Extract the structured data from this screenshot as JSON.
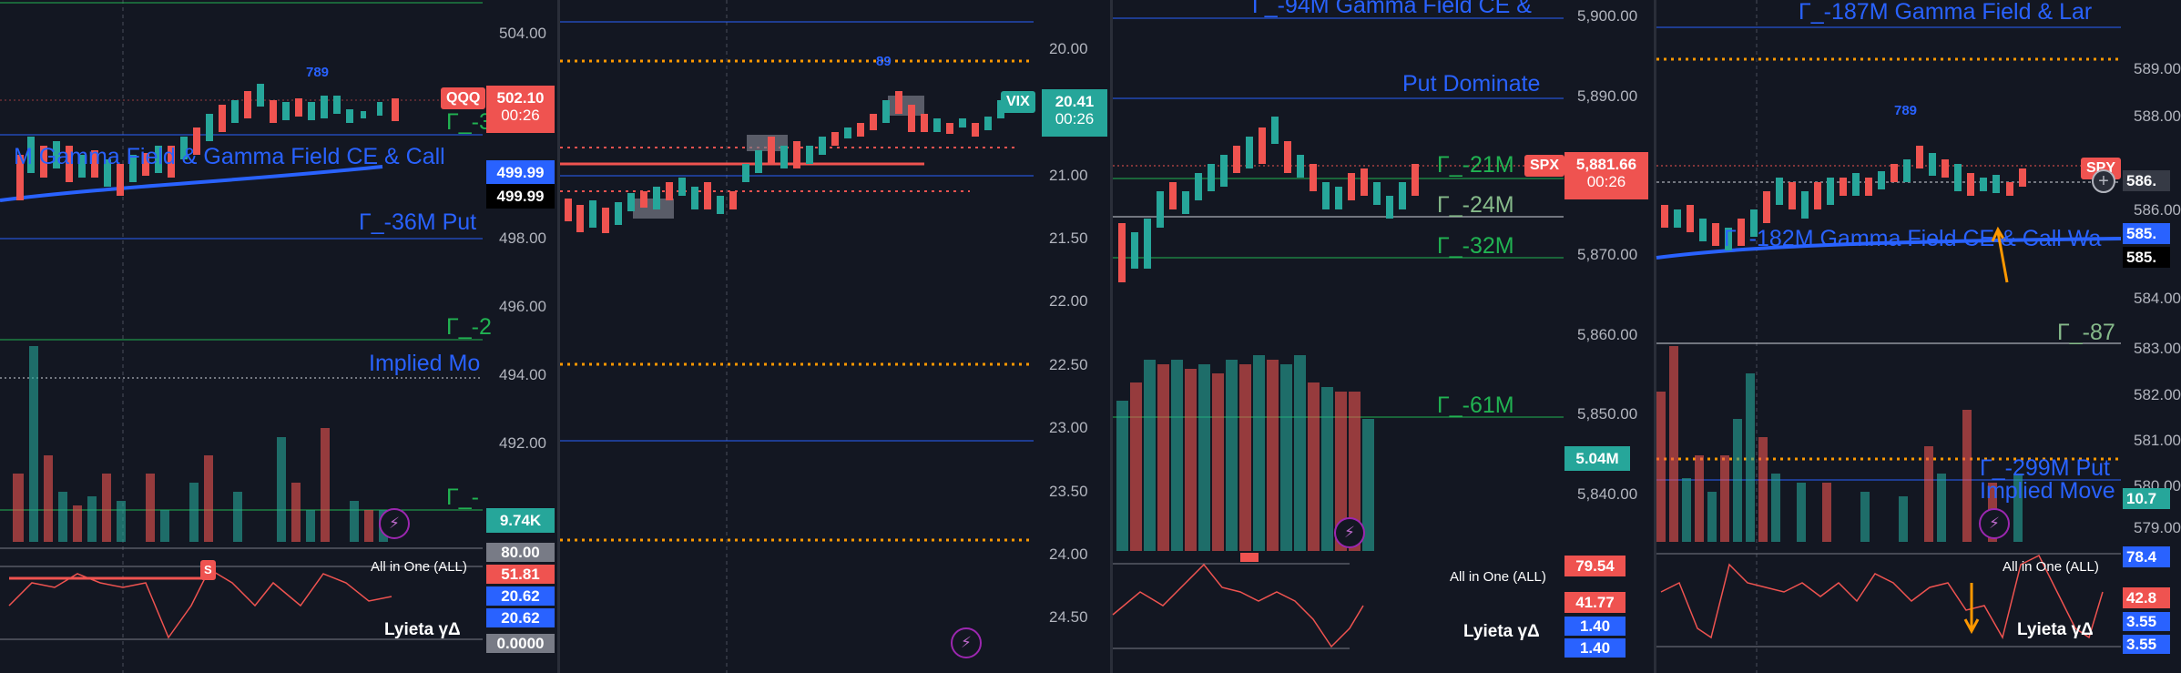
{
  "colors": {
    "bg": "#131722",
    "up": "#26a69a",
    "down": "#ef5350",
    "blue": "#2962ff",
    "green": "#21b352",
    "orange": "#ff9800"
  },
  "panel1": {
    "symbol": "QQQ",
    "price": "502.10",
    "countdown": "00:26",
    "axis": [
      "504.00",
      "498.00",
      "496.00",
      "494.00",
      "492.00"
    ],
    "ma_tag_1": "499.99",
    "ma_tag_2": "499.99",
    "volume": "9.74K",
    "indicator": "All in One (ALL)",
    "ind_val_1": "80.00",
    "ind_val_2": "51.81",
    "ind_val_3": "20.62",
    "ind_val_4": "20.62",
    "ind_val_5": "0.0000",
    "lyieta": "Lyieta γΔ",
    "labels": {
      "gamma_field": "M Gamma Field & Gamma Field CE & Call",
      "put": "Γ_-36M  Put",
      "implied": "Implied Mo",
      "g1": "Γ_-3",
      "g2": "Γ_-2",
      "g3": "Γ_-"
    },
    "seq": "789",
    "sell_marker": "S"
  },
  "panel2": {
    "symbol": "VIX",
    "price": "20.41",
    "countdown": "00:26",
    "axis": [
      "20.00",
      "21.00",
      "21.50",
      "22.00",
      "22.50",
      "23.00",
      "23.50",
      "24.00",
      "24.50"
    ],
    "seq": "89"
  },
  "panel3": {
    "symbol": "SPX",
    "price": "5,881.66",
    "countdown": "00:26",
    "axis": [
      "5,900.00",
      "5,890.00",
      "5,870.00",
      "5,860.00",
      "5,850.00",
      "5,840.00"
    ],
    "volume": "5.04M",
    "indicator": "All in One (ALL)",
    "ind_val_1": "79.54",
    "ind_val_2": "41.77",
    "ind_val_3": "1.40",
    "ind_val_4": "1.40",
    "lyieta": "Lyieta γΔ",
    "labels": {
      "top": "Γ_-94M  Gamma Field CE &",
      "put_dom": "Put Dominate",
      "g21": "Γ_-21M",
      "g24": "Γ_-24M",
      "g32": "Γ_-32M",
      "g61": "Γ_-61M"
    }
  },
  "panel4": {
    "symbol": "SPY",
    "axis": [
      "589.00",
      "588.00",
      "586.00",
      "584.00",
      "583.00",
      "582.00",
      "581.00",
      "580.00",
      "579.00"
    ],
    "price_tag": "586.",
    "ma_tag_1": "585.",
    "ma_tag_2": "585.",
    "volume": "10.7",
    "indicator": "All in One (ALL)",
    "ind_val_1": "78.4",
    "ind_val_2": "42.8",
    "ind_val_3": "3.55",
    "ind_val_4": "3.55",
    "lyieta": "Lyieta γΔ",
    "labels": {
      "top": "Γ_-187M  Gamma Field & Lar",
      "mid": "Γ_-182M  Gamma Field CE & Call Wa",
      "g87": "Γ_-87",
      "g299": "Γ_-299M  Put",
      "implied": "Implied Move"
    },
    "seq": "789"
  }
}
